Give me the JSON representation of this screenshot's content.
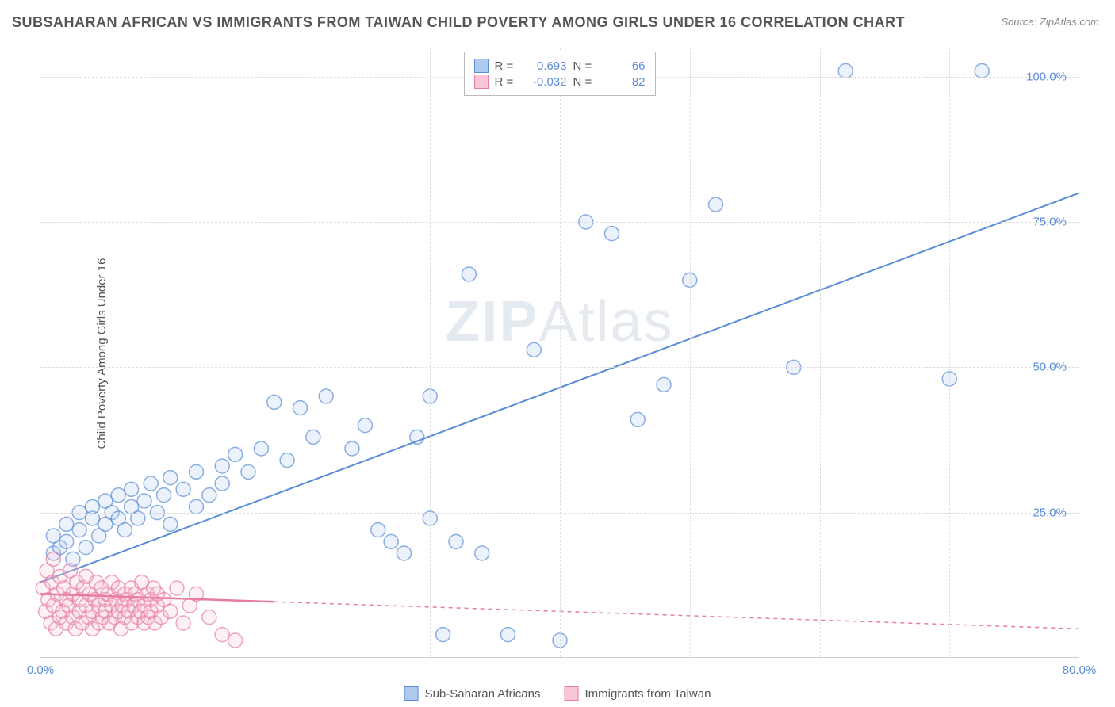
{
  "title": "SUBSAHARAN AFRICAN VS IMMIGRANTS FROM TAIWAN CHILD POVERTY AMONG GIRLS UNDER 16 CORRELATION CHART",
  "source": "Source: ZipAtlas.com",
  "ylabel": "Child Poverty Among Girls Under 16",
  "watermark_zip": "ZIP",
  "watermark_atlas": "Atlas",
  "chart": {
    "type": "scatter",
    "background_color": "#ffffff",
    "grid_color": "#dddddd",
    "axis_color": "#cccccc",
    "tick_color": "#5b8dd6",
    "tick_fontsize": 15,
    "label_fontsize": 15,
    "title_fontsize": 18,
    "title_color": "#555555",
    "marker_radius": 9,
    "marker_fill_opacity": 0.25,
    "marker_stroke_opacity": 0.7,
    "marker_stroke_width": 1.5,
    "xlim": [
      0,
      80
    ],
    "ylim": [
      0,
      105
    ],
    "xticks": [
      0,
      80
    ],
    "xtick_labels": [
      "0.0%",
      "80.0%"
    ],
    "yticks": [
      25,
      50,
      75,
      100
    ],
    "ytick_labels": [
      "25.0%",
      "50.0%",
      "75.0%",
      "100.0%"
    ],
    "xgrid": [
      10,
      20,
      30,
      40,
      50,
      60,
      70
    ],
    "series": [
      {
        "name": "Sub-Saharan Africans",
        "color": "#5b8dd6",
        "fill": "#aecbee",
        "R": "0.693",
        "N": "66",
        "trend": {
          "x1": 0,
          "y1": 13,
          "x2": 80,
          "y2": 80,
          "dash": "none",
          "width": 2
        },
        "points": [
          [
            1,
            18
          ],
          [
            1,
            21
          ],
          [
            1.5,
            19
          ],
          [
            2,
            20
          ],
          [
            2,
            23
          ],
          [
            2.5,
            17
          ],
          [
            3,
            22
          ],
          [
            3,
            25
          ],
          [
            3.5,
            19
          ],
          [
            4,
            24
          ],
          [
            4,
            26
          ],
          [
            4.5,
            21
          ],
          [
            5,
            23
          ],
          [
            5,
            27
          ],
          [
            5.5,
            25
          ],
          [
            6,
            24
          ],
          [
            6,
            28
          ],
          [
            6.5,
            22
          ],
          [
            7,
            26
          ],
          [
            7,
            29
          ],
          [
            7.5,
            24
          ],
          [
            8,
            27
          ],
          [
            8.5,
            30
          ],
          [
            9,
            25
          ],
          [
            9.5,
            28
          ],
          [
            10,
            31
          ],
          [
            10,
            23
          ],
          [
            11,
            29
          ],
          [
            12,
            32
          ],
          [
            12,
            26
          ],
          [
            13,
            28
          ],
          [
            14,
            33
          ],
          [
            14,
            30
          ],
          [
            15,
            35
          ],
          [
            16,
            32
          ],
          [
            17,
            36
          ],
          [
            18,
            44
          ],
          [
            19,
            34
          ],
          [
            20,
            43
          ],
          [
            21,
            38
          ],
          [
            22,
            45
          ],
          [
            24,
            36
          ],
          [
            25,
            40
          ],
          [
            26,
            22
          ],
          [
            27,
            20
          ],
          [
            28,
            18
          ],
          [
            29,
            38
          ],
          [
            30,
            24
          ],
          [
            30,
            45
          ],
          [
            31,
            4
          ],
          [
            32,
            20
          ],
          [
            33,
            66
          ],
          [
            34,
            18
          ],
          [
            36,
            4
          ],
          [
            38,
            53
          ],
          [
            40,
            3
          ],
          [
            42,
            75
          ],
          [
            44,
            73
          ],
          [
            46,
            41
          ],
          [
            48,
            47
          ],
          [
            50,
            65
          ],
          [
            52,
            78
          ],
          [
            58,
            50
          ],
          [
            62,
            101
          ],
          [
            70,
            48
          ],
          [
            72.5,
            101
          ]
        ]
      },
      {
        "name": "Immigrants from Taiwan",
        "color": "#e77ca3",
        "fill": "#f7c6d7",
        "R": "-0.032",
        "N": "82",
        "trend": {
          "x1": 0,
          "y1": 11,
          "x2": 80,
          "y2": 5,
          "dash": "5,5",
          "width": 1.5,
          "solid_until_x": 18
        },
        "points": [
          [
            0.2,
            12
          ],
          [
            0.4,
            8
          ],
          [
            0.5,
            15
          ],
          [
            0.6,
            10
          ],
          [
            0.8,
            6
          ],
          [
            0.9,
            13
          ],
          [
            1,
            9
          ],
          [
            1,
            17
          ],
          [
            1.2,
            5
          ],
          [
            1.3,
            11
          ],
          [
            1.5,
            7
          ],
          [
            1.5,
            14
          ],
          [
            1.7,
            8
          ],
          [
            1.8,
            12
          ],
          [
            2,
            6
          ],
          [
            2,
            10
          ],
          [
            2.2,
            9
          ],
          [
            2.3,
            15
          ],
          [
            2.5,
            7
          ],
          [
            2.5,
            11
          ],
          [
            2.7,
            5
          ],
          [
            2.8,
            13
          ],
          [
            3,
            8
          ],
          [
            3,
            10
          ],
          [
            3.2,
            6
          ],
          [
            3.3,
            12
          ],
          [
            3.5,
            9
          ],
          [
            3.5,
            14
          ],
          [
            3.7,
            7
          ],
          [
            3.8,
            11
          ],
          [
            4,
            5
          ],
          [
            4,
            8
          ],
          [
            4.2,
            10
          ],
          [
            4.3,
            13
          ],
          [
            4.5,
            6
          ],
          [
            4.5,
            9
          ],
          [
            4.7,
            12
          ],
          [
            4.8,
            7
          ],
          [
            5,
            10
          ],
          [
            5,
            8
          ],
          [
            5.2,
            11
          ],
          [
            5.3,
            6
          ],
          [
            5.5,
            9
          ],
          [
            5.5,
            13
          ],
          [
            5.7,
            7
          ],
          [
            5.8,
            10
          ],
          [
            6,
            8
          ],
          [
            6,
            12
          ],
          [
            6.2,
            5
          ],
          [
            6.3,
            9
          ],
          [
            6.5,
            11
          ],
          [
            6.5,
            7
          ],
          [
            6.7,
            10
          ],
          [
            6.8,
            8
          ],
          [
            7,
            6
          ],
          [
            7,
            12
          ],
          [
            7.2,
            9
          ],
          [
            7.3,
            11
          ],
          [
            7.5,
            7
          ],
          [
            7.5,
            10
          ],
          [
            7.7,
            8
          ],
          [
            7.8,
            13
          ],
          [
            8,
            6
          ],
          [
            8,
            9
          ],
          [
            8.2,
            11
          ],
          [
            8.3,
            7
          ],
          [
            8.5,
            10
          ],
          [
            8.5,
            8
          ],
          [
            8.7,
            12
          ],
          [
            8.8,
            6
          ],
          [
            9,
            9
          ],
          [
            9,
            11
          ],
          [
            9.3,
            7
          ],
          [
            9.5,
            10
          ],
          [
            10,
            8
          ],
          [
            10.5,
            12
          ],
          [
            11,
            6
          ],
          [
            11.5,
            9
          ],
          [
            12,
            11
          ],
          [
            13,
            7
          ],
          [
            14,
            4
          ],
          [
            15,
            3
          ]
        ]
      }
    ]
  },
  "legend_top": {
    "R_label": "R =",
    "N_label": "N ="
  },
  "legend_bottom": {
    "series1_label": "Sub-Saharan Africans",
    "series2_label": "Immigrants from Taiwan"
  }
}
